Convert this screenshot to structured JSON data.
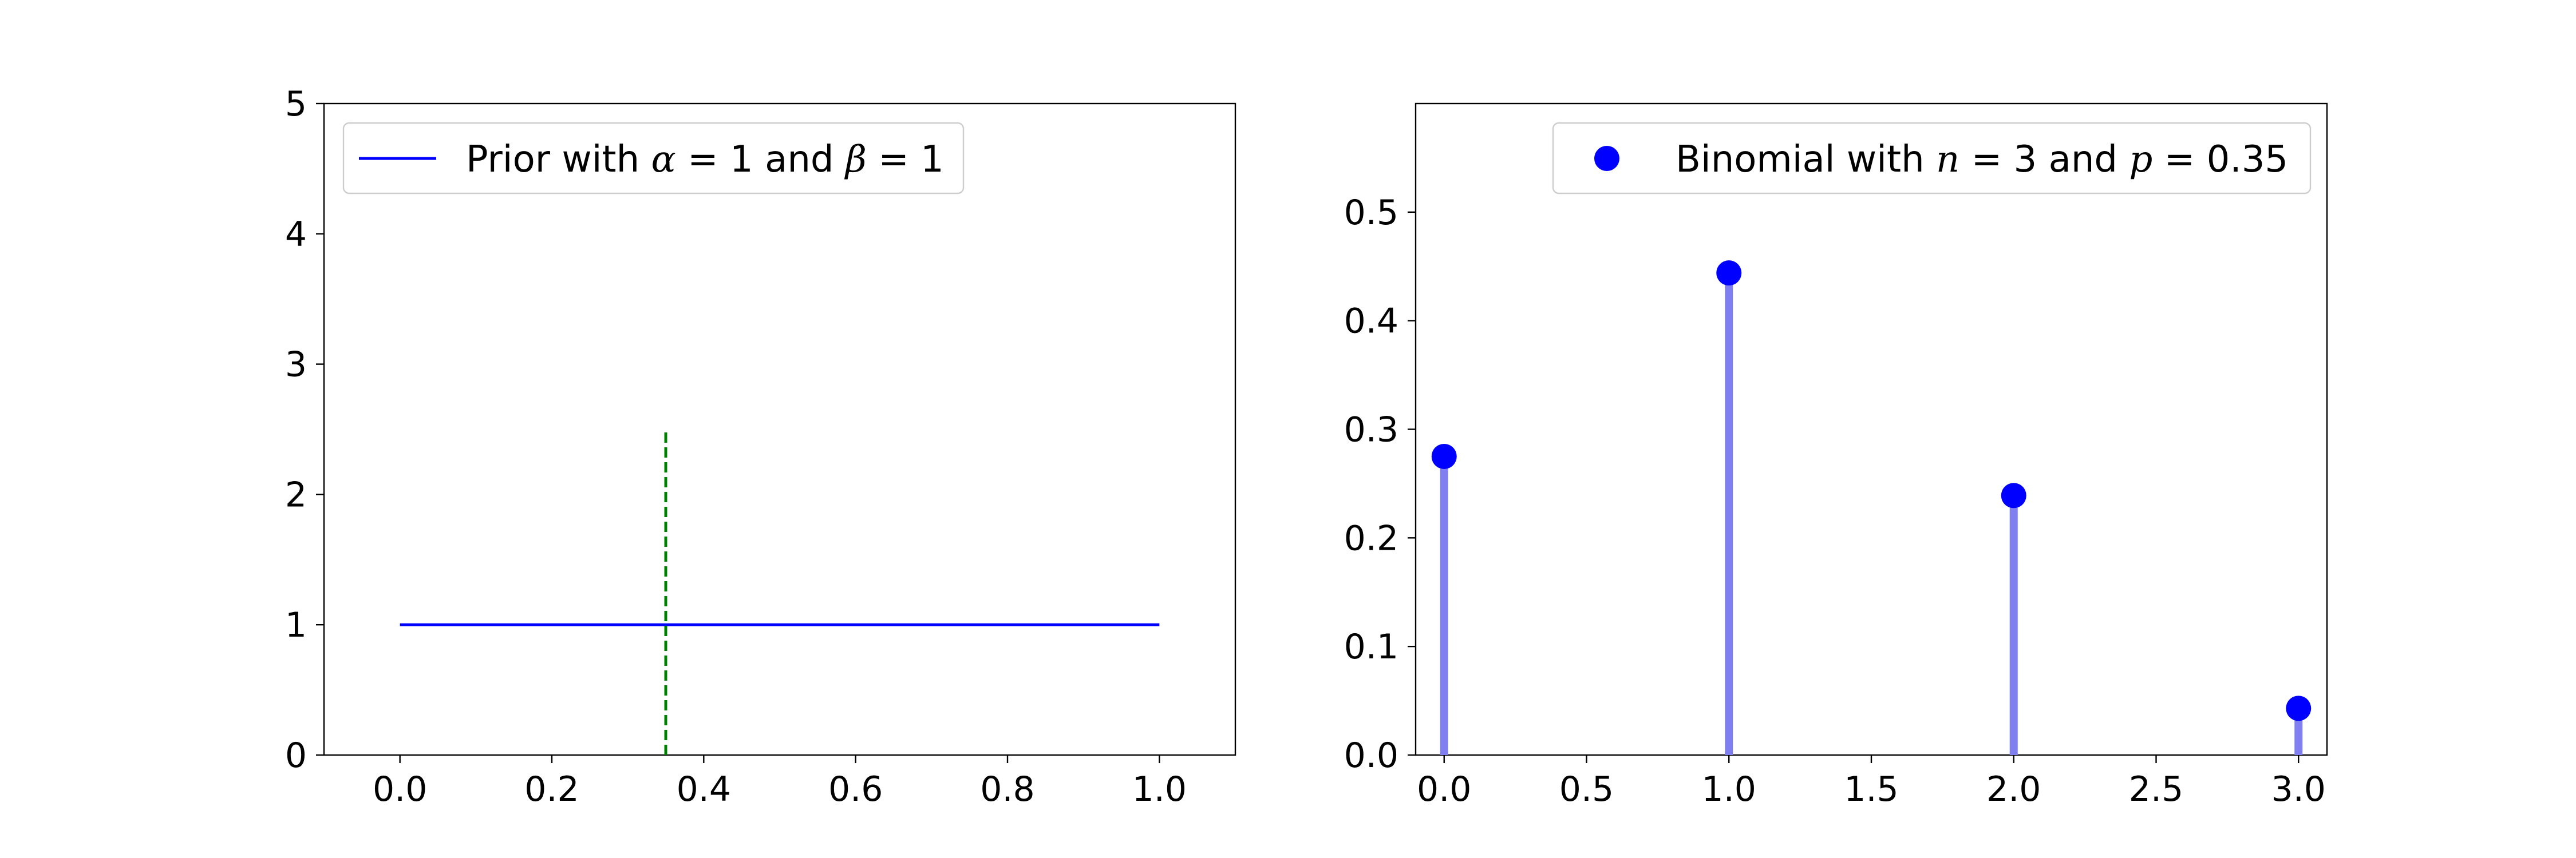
{
  "chart_data": [
    {
      "type": "line",
      "xlim": [
        -0.1,
        1.1
      ],
      "ylim": [
        0,
        5
      ],
      "xticks": [
        "0.0",
        "0.2",
        "0.4",
        "0.6",
        "0.8",
        "1.0"
      ],
      "xtick_values": [
        0.0,
        0.2,
        0.4,
        0.6,
        0.8,
        1.0
      ],
      "yticks": [
        "0",
        "1",
        "2",
        "3",
        "4",
        "5"
      ],
      "ytick_values": [
        0,
        1,
        2,
        3,
        4,
        5
      ],
      "series": [
        {
          "name": "Prior with α = 1 and β = 1",
          "x": [
            0.0,
            1.0
          ],
          "y": [
            1,
            1
          ],
          "color": "#0000ff",
          "style": "solid"
        }
      ],
      "vlines": [
        {
          "x": 0.35,
          "ymin": 0,
          "ymax": 2.5,
          "color": "#008000",
          "style": "dashed"
        }
      ],
      "legend": {
        "position": "top-left",
        "parts": [
          {
            "text": "Prior with ",
            "italic": false
          },
          {
            "text": "α",
            "italic": true
          },
          {
            "text": " = 1 and ",
            "italic": false
          },
          {
            "text": "β",
            "italic": true
          },
          {
            "text": " = 1",
            "italic": false
          }
        ]
      },
      "grid": false
    },
    {
      "type": "scatter",
      "xlim": [
        -0.1,
        3.1
      ],
      "ylim": [
        0,
        0.6
      ],
      "xticks": [
        "0.0",
        "0.5",
        "1.0",
        "1.5",
        "2.0",
        "2.5",
        "3.0"
      ],
      "xtick_values": [
        0.0,
        0.5,
        1.0,
        1.5,
        2.0,
        2.5,
        3.0
      ],
      "yticks": [
        "0.0",
        "0.1",
        "0.2",
        "0.3",
        "0.4",
        "0.5"
      ],
      "ytick_values": [
        0.0,
        0.1,
        0.2,
        0.3,
        0.4,
        0.5
      ],
      "series": [
        {
          "name": "Binomial with n = 3 and p = 0.35",
          "x": [
            0,
            1,
            2,
            3
          ],
          "y": [
            0.275,
            0.444,
            0.239,
            0.043
          ],
          "color": "#0000ff",
          "stem_color": "#7f7ff0"
        }
      ],
      "legend": {
        "position": "top-right",
        "parts": [
          {
            "text": "Binomial with ",
            "italic": false
          },
          {
            "text": "n",
            "italic": true
          },
          {
            "text": " = 3 and ",
            "italic": false
          },
          {
            "text": "p",
            "italic": true
          },
          {
            "text": " = 0.35",
            "italic": false
          }
        ]
      },
      "grid": false
    }
  ]
}
